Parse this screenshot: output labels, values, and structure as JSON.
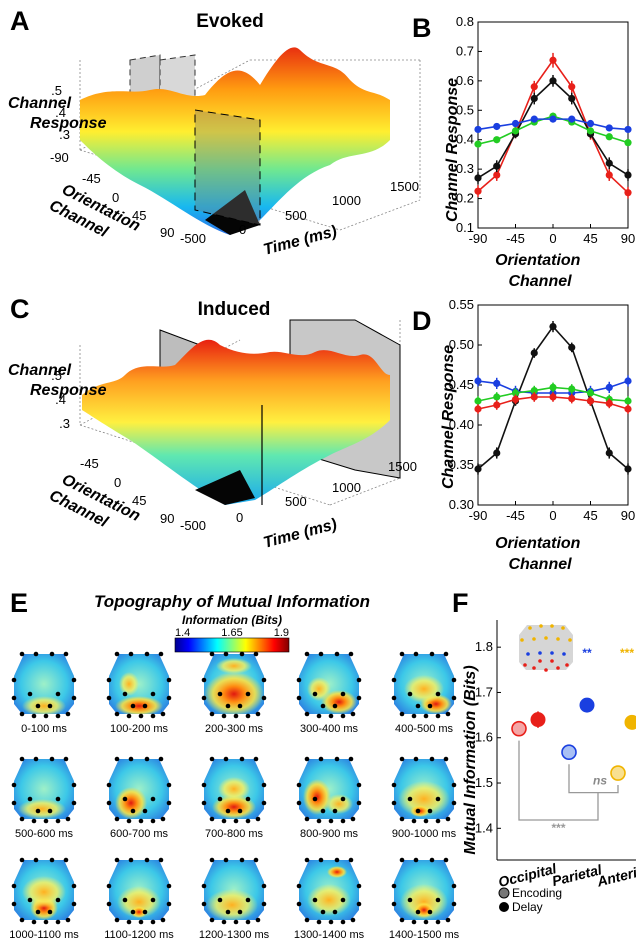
{
  "panels": {
    "A": {
      "letter": "A",
      "title": "Evoked",
      "zlabel": [
        "Channel",
        "Response"
      ],
      "ylabel": [
        "Orientation",
        "Channel"
      ],
      "xlabel": "Time (ms)",
      "zticks": [
        ".5",
        ".4",
        ".3"
      ],
      "yticks": [
        "-90",
        "-45",
        "0",
        "45",
        "90"
      ],
      "xticks": [
        "-500",
        "0",
        "500",
        "1000",
        "1500"
      ]
    },
    "B": {
      "letter": "B",
      "ylabel": "Channel Response",
      "xlabel": [
        "Orientation",
        "Channel"
      ]
    },
    "C": {
      "letter": "C",
      "title": "Induced",
      "zlabel": [
        "Channel",
        "Response"
      ],
      "ylabel": [
        "Orientation",
        "Channel"
      ],
      "xlabel": "Time (ms)",
      "zticks": [
        ".5",
        ".4",
        ".3"
      ],
      "yticks": [
        "-45",
        "0",
        "45",
        "90"
      ],
      "xticks": [
        "-500",
        "0",
        "500",
        "1000",
        "1500"
      ]
    },
    "D": {
      "letter": "D",
      "ylabel": "Channel Response",
      "xlabel": [
        "Orientation",
        "Channel"
      ]
    },
    "E": {
      "letter": "E",
      "title": "Topography of Mutual Information",
      "colorbar_label": "Information (Bits)",
      "colorbar_ticks": [
        "1.4",
        "1.65",
        "1.9"
      ],
      "maps": [
        "0-100 ms",
        "100-200 ms",
        "200-300 ms",
        "300-400 ms",
        "400-500 ms",
        "500-600 ms",
        "600-700 ms",
        "700-800 ms",
        "800-900 ms",
        "900-1000 ms",
        "1000-1100 ms",
        "1100-1200 ms",
        "1200-1300 ms",
        "1300-1400 ms",
        "1400-1500 ms"
      ]
    },
    "F": {
      "letter": "F",
      "ylabel": "Mutual Information (Bits)",
      "legend": [
        "Encoding",
        "Delay"
      ],
      "sig_labels": {
        "parietal_delay": "**",
        "anterior_delay": "***",
        "bracket_a": "***",
        "bracket_b": "ns"
      }
    }
  },
  "colors": {
    "red": "#e8201a",
    "black": "#111111",
    "green": "#22cc22",
    "blue": "#1a3fe0",
    "yellow": "#f0b400"
  },
  "chart_data": [
    {
      "panel": "B",
      "type": "line",
      "x": [
        -90,
        -67.5,
        -45,
        -22.5,
        0,
        22.5,
        45,
        67.5,
        90
      ],
      "xticks": [
        "-90",
        "-45",
        "0",
        "45",
        "90"
      ],
      "yticks": [
        "0.1",
        "0.2",
        "0.3",
        "0.4",
        "0.5",
        "0.6",
        "0.7",
        "0.8"
      ],
      "ylim": [
        0.1,
        0.8
      ],
      "xlim": [
        -90,
        90
      ],
      "series": [
        {
          "color": "#e8201a",
          "values": [
            0.225,
            0.28,
            0.425,
            0.58,
            0.67,
            0.58,
            0.42,
            0.28,
            0.22
          ],
          "err": [
            0.02,
            0.02,
            0.02,
            0.02,
            0.025,
            0.02,
            0.02,
            0.02,
            0.02
          ]
        },
        {
          "color": "#111111",
          "values": [
            0.27,
            0.31,
            0.42,
            0.54,
            0.6,
            0.54,
            0.42,
            0.32,
            0.28
          ],
          "err": [
            0.02,
            0.02,
            0.015,
            0.02,
            0.02,
            0.02,
            0.015,
            0.02,
            0.02
          ]
        },
        {
          "color": "#22cc22",
          "values": [
            0.385,
            0.4,
            0.43,
            0.46,
            0.48,
            0.46,
            0.43,
            0.41,
            0.39
          ],
          "err": [
            0.01,
            0.01,
            0.01,
            0.01,
            0.012,
            0.01,
            0.01,
            0.01,
            0.01
          ]
        },
        {
          "color": "#1a3fe0",
          "values": [
            0.435,
            0.445,
            0.455,
            0.47,
            0.47,
            0.47,
            0.455,
            0.44,
            0.435
          ],
          "err": [
            0.01,
            0.01,
            0.01,
            0.01,
            0.01,
            0.01,
            0.01,
            0.01,
            0.01
          ]
        }
      ]
    },
    {
      "panel": "D",
      "type": "line",
      "x": [
        -90,
        -67.5,
        -45,
        -22.5,
        0,
        22.5,
        45,
        67.5,
        90
      ],
      "xticks": [
        "-90",
        "-45",
        "0",
        "45",
        "90"
      ],
      "yticks": [
        "0.30",
        "0.35",
        "0.40",
        "0.45",
        "0.50",
        "0.55"
      ],
      "ylim": [
        0.3,
        0.55
      ],
      "xlim": [
        -90,
        90
      ],
      "series": [
        {
          "color": "#111111",
          "values": [
            0.345,
            0.365,
            0.43,
            0.49,
            0.523,
            0.497,
            0.43,
            0.365,
            0.345
          ],
          "err": [
            0.007,
            0.007,
            0.006,
            0.006,
            0.007,
            0.006,
            0.006,
            0.007,
            0.007
          ]
        },
        {
          "color": "#1a3fe0",
          "values": [
            0.455,
            0.452,
            0.442,
            0.44,
            0.44,
            0.44,
            0.442,
            0.447,
            0.455
          ],
          "err": [
            0.007,
            0.007,
            0.007,
            0.007,
            0.007,
            0.007,
            0.007,
            0.007,
            0.007
          ]
        },
        {
          "color": "#22cc22",
          "values": [
            0.43,
            0.435,
            0.44,
            0.443,
            0.447,
            0.445,
            0.44,
            0.432,
            0.43
          ],
          "err": [
            0.006,
            0.006,
            0.006,
            0.006,
            0.006,
            0.006,
            0.006,
            0.006,
            0.006
          ]
        },
        {
          "color": "#e8201a",
          "values": [
            0.42,
            0.425,
            0.432,
            0.435,
            0.435,
            0.433,
            0.43,
            0.427,
            0.42
          ],
          "err": [
            0.006,
            0.006,
            0.006,
            0.006,
            0.006,
            0.006,
            0.006,
            0.006,
            0.006
          ]
        }
      ]
    },
    {
      "panel": "F",
      "type": "scatter",
      "categories": [
        "Occipital",
        "Parietal",
        "Anterior"
      ],
      "yticks": [
        "1.4",
        "1.5",
        "1.6",
        "1.7",
        "1.8"
      ],
      "ylim": [
        1.33,
        1.86
      ],
      "series": [
        {
          "name": "Encoding",
          "values": [
            1.62,
            1.568,
            1.522
          ],
          "err": [
            0.012,
            0.015,
            0.012
          ]
        },
        {
          "name": "Delay",
          "values": [
            1.64,
            1.672,
            1.634
          ],
          "err": [
            0.018,
            0.015,
            0.015
          ]
        }
      ],
      "region_colors": [
        "#e8201a",
        "#1a3fe0",
        "#f0b400"
      ]
    }
  ]
}
